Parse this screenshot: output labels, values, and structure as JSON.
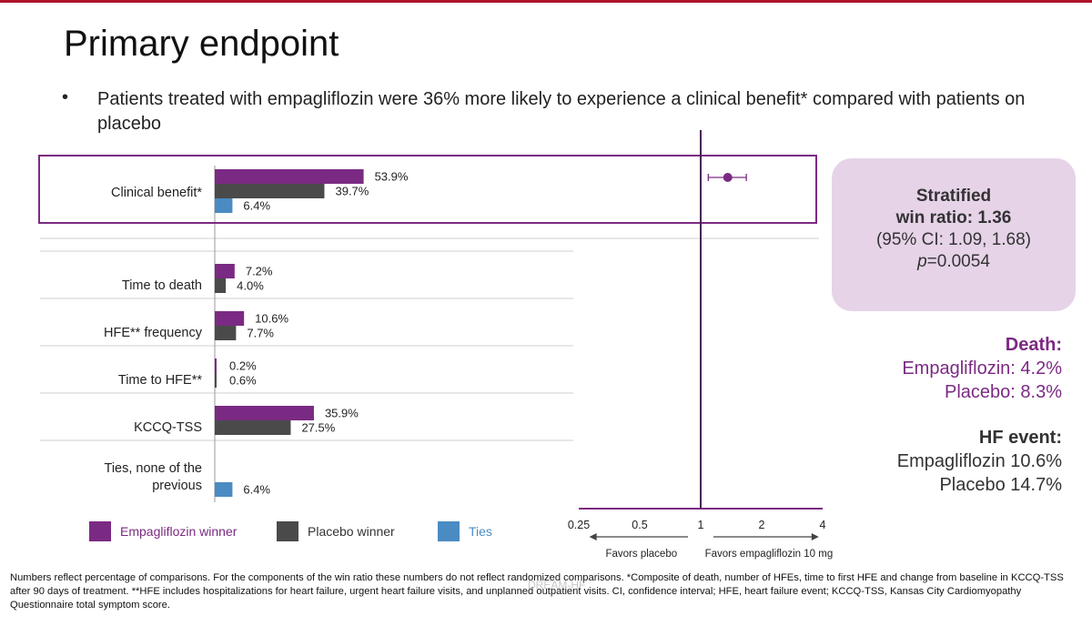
{
  "title": "Primary endpoint",
  "bullet": "Patients treated with empagliflozin were 36% more likely to experience a clinical benefit* compared with patients on placebo",
  "colors": {
    "empagliflozin": "#7b2a83",
    "placebo": "#4a4a4a",
    "ties": "#4a8bc4",
    "accent": "#b0132c"
  },
  "chart_data": [
    {
      "type": "bar",
      "orientation": "horizontal",
      "categories": [
        "Clinical benefit*",
        "Time to death",
        "HFE** frequency",
        "Time to HFE**",
        "KCCQ-TSS",
        "Ties, none of the previous"
      ],
      "series": [
        {
          "name": "Empagliflozin winner",
          "values": [
            53.9,
            7.2,
            10.6,
            0.2,
            35.9,
            null
          ],
          "labels": [
            "53.9%",
            "7.2%",
            "10.6%",
            "0.2%",
            "35.9%",
            ""
          ]
        },
        {
          "name": "Placebo winner",
          "values": [
            39.7,
            4.0,
            7.7,
            0.6,
            27.5,
            null
          ],
          "labels": [
            "39.7%",
            "4.0%",
            "7.7%",
            "0.6%",
            "27.5%",
            ""
          ]
        },
        {
          "name": "Ties",
          "values": [
            6.4,
            null,
            null,
            null,
            null,
            6.4
          ],
          "labels": [
            "6.4%",
            "",
            "",
            "",
            "",
            "6.4%"
          ]
        }
      ]
    },
    {
      "type": "scatter",
      "x_scale": "log",
      "x_ticks": [
        0.25,
        0.5,
        1,
        2,
        4
      ],
      "x_tick_labels": [
        "0.25",
        "0.5",
        "1",
        "2",
        "4"
      ],
      "reference_line": 1,
      "points": [
        {
          "x": 1.36,
          "ci_low": 1.09,
          "ci_high": 1.68
        }
      ],
      "left_annotation": "Favors placebo",
      "right_annotation": "Favors empagliflozin 10 mg"
    }
  ],
  "win_ratio": {
    "line1": "Stratified",
    "line2": "win ratio: 1.36",
    "line3": "(95% CI: 1.09, 1.68)",
    "p_label": "p",
    "p_value": "=0.0054"
  },
  "death": {
    "heading": "Death:",
    "empa": "Empagliflozin: 4.2%",
    "placebo": "Placebo: 8.3%"
  },
  "hf_event": {
    "heading": "HF event:",
    "empa": "Empagliflozin 10.6%",
    "placebo": "Placebo 14.7%"
  },
  "footnote": "Numbers reflect percentage of comparisons. For the components of the win ratio these numbers do not reflect randomized comparisons. *Composite of death, number of HFEs, time to first HFE and change from baseline in KCCQ-TSS after 90 days of treatment. **HFE includes hospitalizations for heart failure, urgent heart failure visits, and unplanned outpatient visits. CI, confidence interval; HFE, heart failure event; KCCQ-TSS, Kansas City Cardiomyopathy Questionnaire total symptom score.",
  "watermark": "DREAM-HF"
}
